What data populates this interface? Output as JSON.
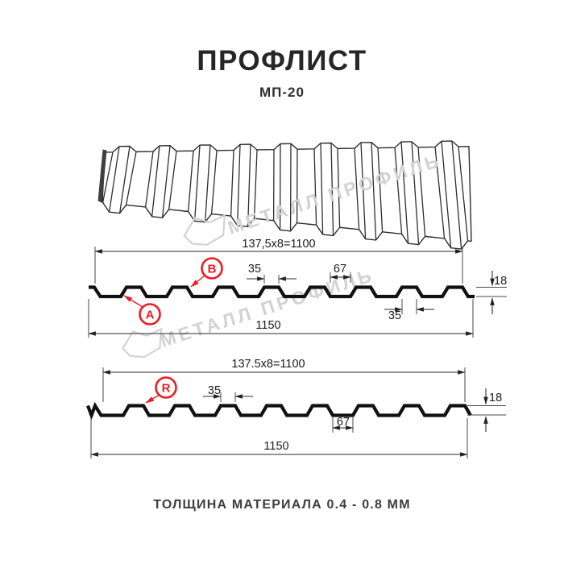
{
  "header": {
    "title": "ПРОФЛИСТ",
    "subtitle": "МП-20"
  },
  "watermark": {
    "text": "МЕТАЛЛ ПРОФИЛЬ"
  },
  "profile_top": {
    "markers": {
      "a": "A",
      "b": "B"
    },
    "dims": {
      "module": "137,5x8=1100",
      "crest_top": "35",
      "valley": "67",
      "height": "18",
      "crest_bottom": "35",
      "total": "1150"
    }
  },
  "profile_bottom": {
    "markers": {
      "r": "R"
    },
    "dims": {
      "module": "137.5x8=1100",
      "crest": "35",
      "valley": "67",
      "height": "18",
      "total": "1150"
    }
  },
  "footer": {
    "note": "ТОЛЩИНА МАТЕРИАЛА 0.4 - 0.8 ММ"
  },
  "colors": {
    "accent_red": "#ed1c24",
    "line_color": "#111111",
    "watermark_gray": "#d2d2d2"
  }
}
